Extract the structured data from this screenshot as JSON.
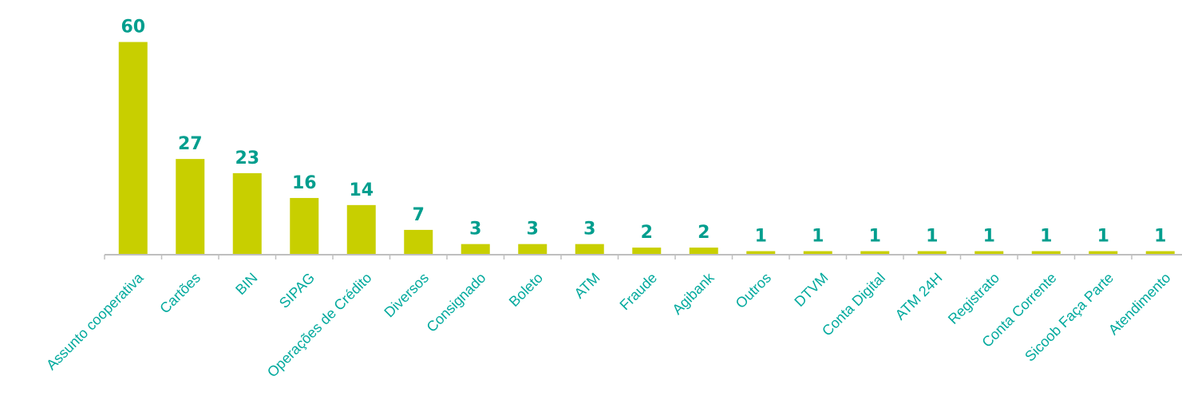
{
  "chart_data": {
    "type": "bar",
    "title": "",
    "xlabel": "",
    "ylabel": "",
    "categories": [
      "Assunto cooperativa",
      "Cartões",
      "BIN",
      "SIPAG",
      "Operações de Crédito",
      "Diversos",
      "Consignado",
      "Boleto",
      "ATM",
      "Fraude",
      "Agibank",
      "Outros",
      "DTVM",
      "Conta Digital",
      "ATM 24H",
      "Registrato",
      "Conta Corrente",
      "Sicoob Faça Parte",
      "Atendimento"
    ],
    "values": [
      60,
      27,
      23,
      16,
      14,
      7,
      3,
      3,
      3,
      2,
      2,
      1,
      1,
      1,
      1,
      1,
      1,
      1,
      1
    ],
    "ylim": [
      0,
      60
    ],
    "grid": false,
    "legend": "none",
    "data_labels": true,
    "colors": {
      "bar": "#c8cf00",
      "value_label": "#009e8e",
      "category_label": "#00a99d",
      "axis": "#bfbfbf"
    }
  }
}
